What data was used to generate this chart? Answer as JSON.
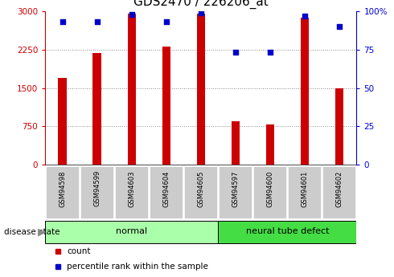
{
  "title": "GDS2470 / 226206_at",
  "samples": [
    "GSM94598",
    "GSM94599",
    "GSM94603",
    "GSM94604",
    "GSM94605",
    "GSM94597",
    "GSM94600",
    "GSM94601",
    "GSM94602"
  ],
  "counts": [
    1700,
    2175,
    2950,
    2300,
    2950,
    850,
    780,
    2875,
    1500
  ],
  "percentile_ranks": [
    93,
    93,
    98,
    93,
    99,
    73,
    73,
    97,
    90
  ],
  "groups": [
    {
      "label": "normal",
      "start": 0,
      "end": 5,
      "color": "#aaffaa"
    },
    {
      "label": "neural tube defect",
      "start": 5,
      "end": 9,
      "color": "#44dd44"
    }
  ],
  "bar_color": "#cc0000",
  "dot_color": "#0000cc",
  "ylim_left": [
    0,
    3000
  ],
  "ylim_right": [
    0,
    100
  ],
  "yticks_left": [
    0,
    750,
    1500,
    2250,
    3000
  ],
  "ytick_labels_left": [
    "0",
    "750",
    "1500",
    "2250",
    "3000"
  ],
  "yticks_right": [
    0,
    25,
    50,
    75,
    100
  ],
  "ytick_labels_right": [
    "0",
    "25",
    "50",
    "75",
    "100%"
  ],
  "legend_count_label": "count",
  "legend_pct_label": "percentile rank within the sample",
  "disease_state_label": "disease state",
  "background_color": "#ffffff",
  "tick_box_color": "#cccccc",
  "grid_color": "#888888",
  "title_fontsize": 11,
  "tick_fontsize": 7.5,
  "bar_width": 0.25
}
